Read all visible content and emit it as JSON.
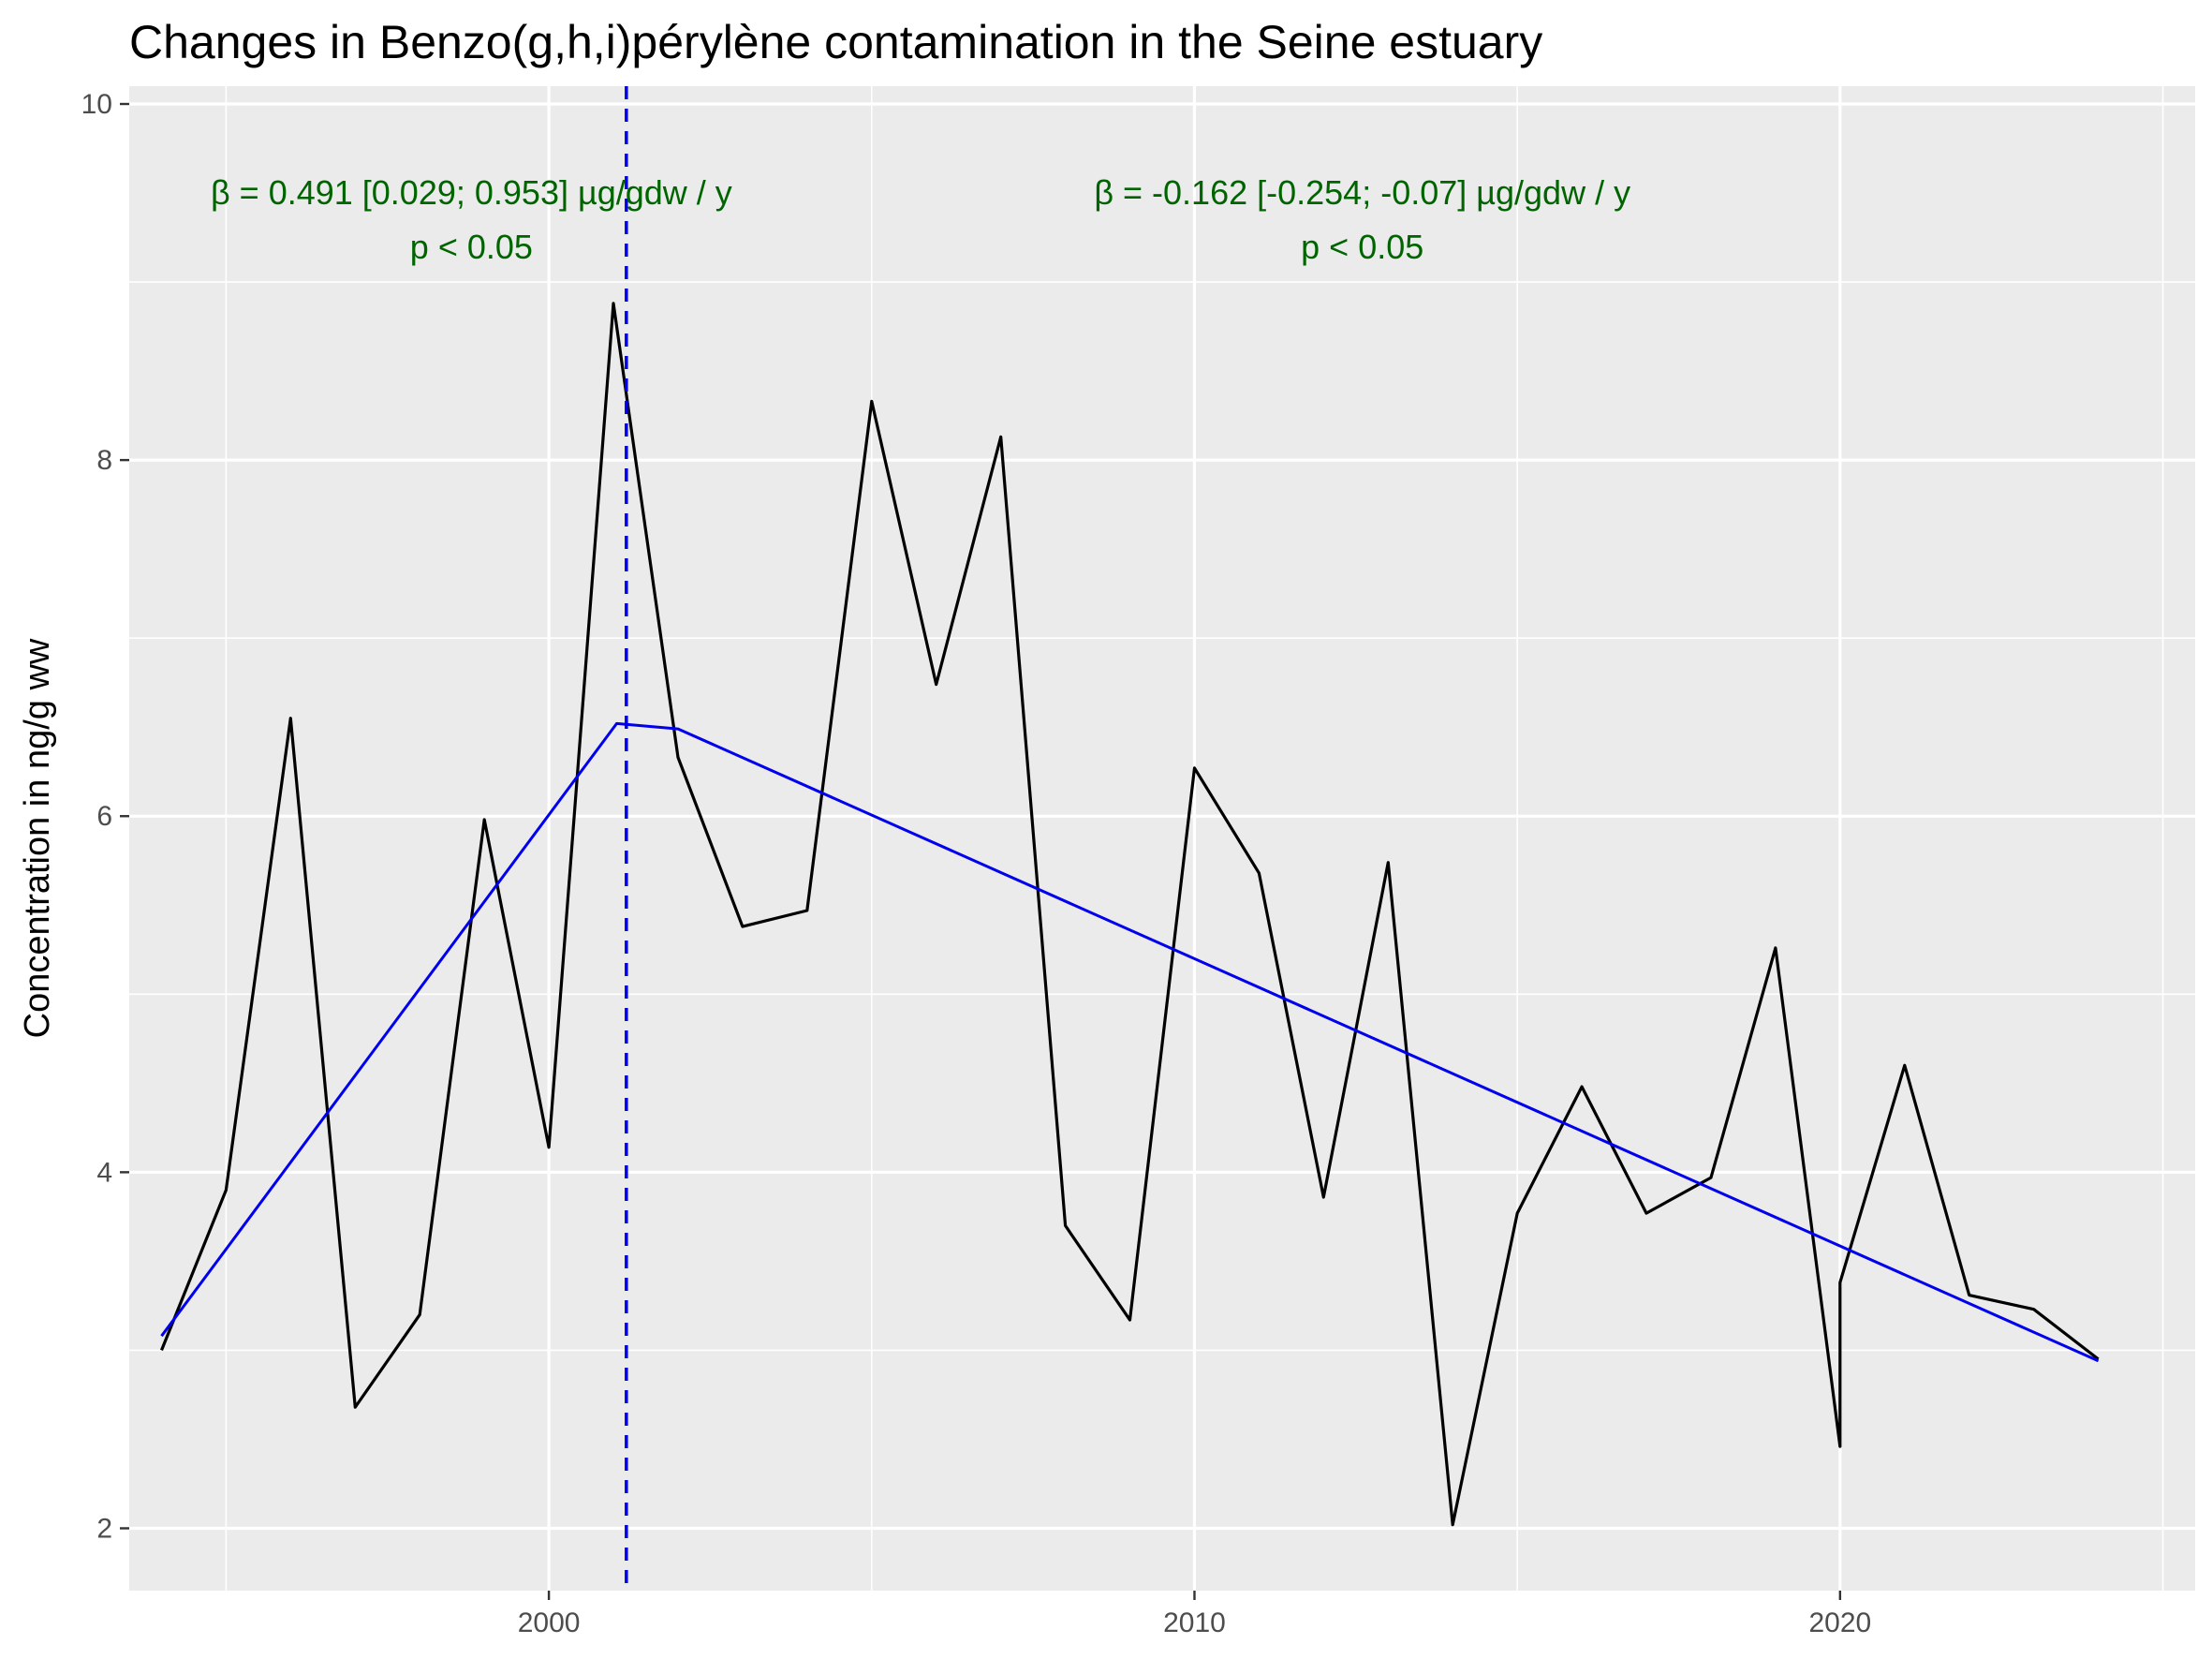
{
  "chart_data": {
    "type": "line",
    "title": "Changes in Benzo(g,h,i)pérylène contamination in the Seine estuary",
    "xlabel": "",
    "ylabel": "Concentration in ng/g ww",
    "xlim": [
      1993.5,
      2025.5
    ],
    "ylim": [
      1.65,
      10.1
    ],
    "x_ticks": [
      2000,
      2010,
      2020
    ],
    "y_ticks": [
      2,
      4,
      6,
      8,
      10
    ],
    "grid": true,
    "colors": {
      "panel": "#ebebeb",
      "grid": "#ffffff",
      "observed": "#000000",
      "trend": "#0000ee",
      "breakpoint": "#0000ee",
      "annotation": "#006400"
    },
    "series": [
      {
        "values": [
          [
            1994,
            3.0
          ],
          [
            1995,
            3.9
          ],
          [
            1996,
            6.55
          ],
          [
            1997,
            2.68
          ],
          [
            1998,
            3.2
          ],
          [
            1999,
            5.98
          ],
          [
            2000,
            4.14
          ],
          [
            2001,
            8.88
          ],
          [
            2002,
            6.33
          ],
          [
            2003,
            5.38
          ],
          [
            2004,
            5.47
          ],
          [
            2005,
            8.33
          ],
          [
            2006,
            6.74
          ],
          [
            2007,
            8.13
          ],
          [
            2008,
            3.7
          ],
          [
            2009,
            3.17
          ],
          [
            2010,
            6.27
          ],
          [
            2011,
            5.68
          ],
          [
            2012,
            3.86
          ],
          [
            2013,
            5.74
          ],
          [
            2014,
            2.02
          ],
          [
            2015,
            3.77
          ],
          [
            2016,
            4.48
          ],
          [
            2017,
            3.77
          ],
          [
            2018,
            3.97
          ],
          [
            2019,
            5.26
          ],
          [
            2020,
            2.46
          ],
          [
            2020,
            3.38
          ],
          [
            2021,
            4.6
          ],
          [
            2022,
            3.31
          ],
          [
            2023,
            3.23
          ],
          [
            2024,
            2.95
          ]
        ]
      }
    ],
    "trend": {
      "values": [
        [
          1994,
          3.08
        ],
        [
          2001.05,
          6.52
        ],
        [
          2002,
          6.49
        ],
        [
          2024,
          2.94
        ]
      ]
    },
    "breakpoint_x": 2001.2,
    "annotations": [
      {
        "line1": "β = 0.491 [0.029; 0.953] µg/gdw / y",
        "line2": "p < 0.05",
        "x": 1998.8,
        "y": 9.5
      },
      {
        "line1": "β = -0.162 [-0.254; -0.07] µg/gdw / y",
        "line2": "p < 0.05",
        "x": 2012.6,
        "y": 9.5
      }
    ]
  }
}
